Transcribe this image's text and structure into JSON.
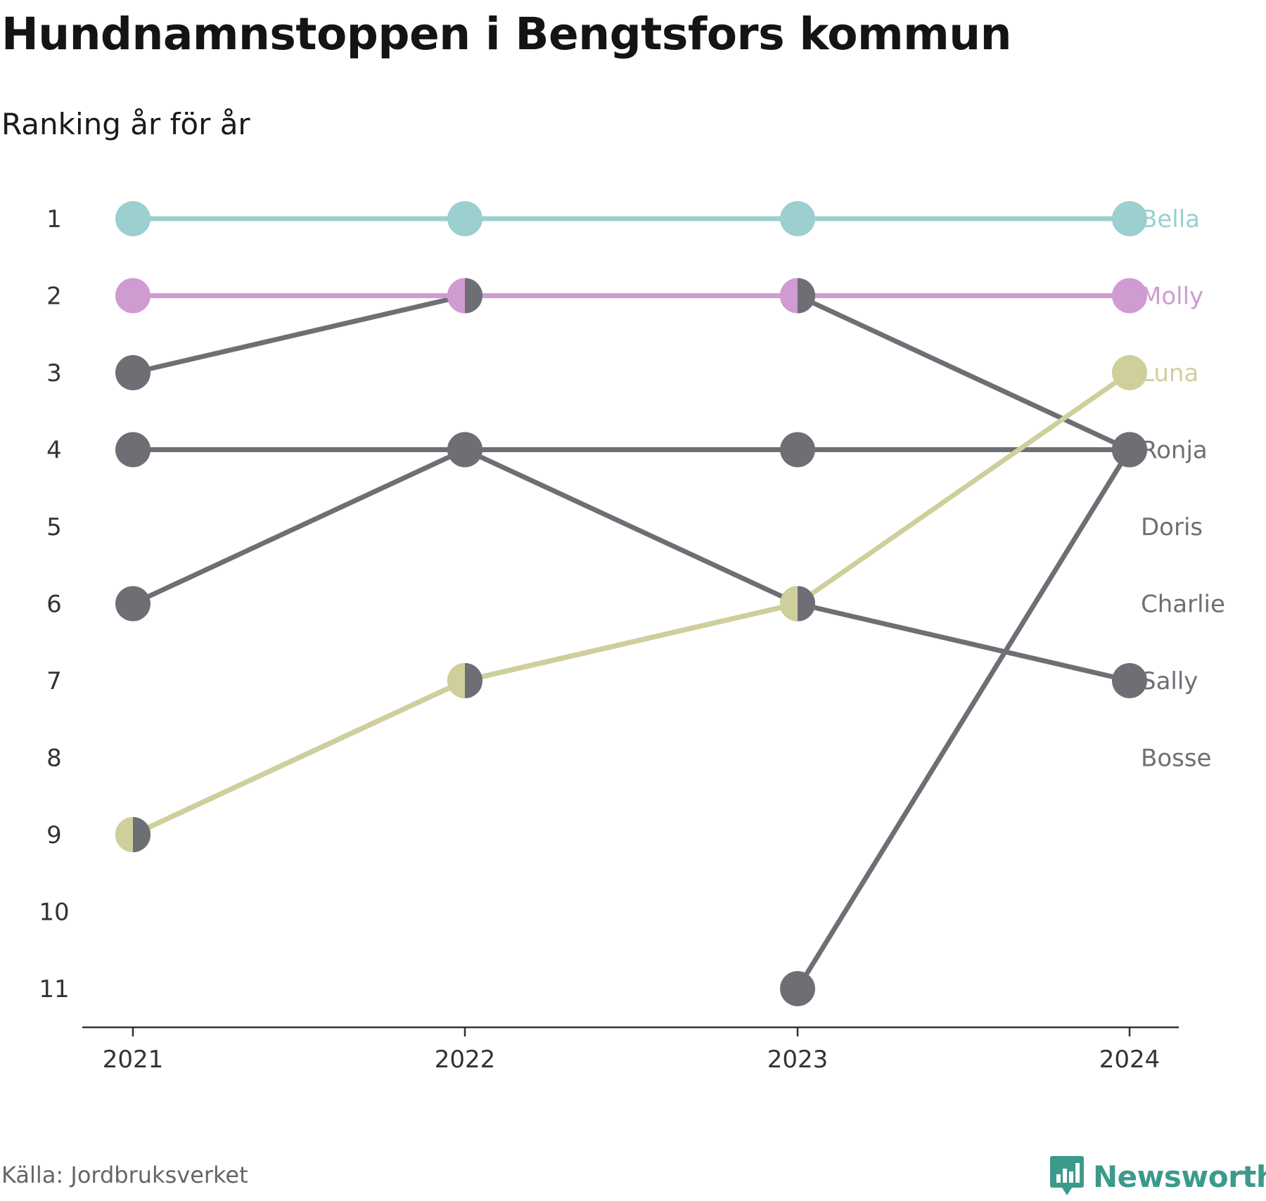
{
  "title": "Hundnamnstoppen i Bengtsfors kommun",
  "subtitle": "Ranking år för år",
  "source": "Källa: Jordbruksverket",
  "brand": {
    "name": "Newsworthy",
    "icon": "bar-chart-speech-bubble-icon",
    "color": "#3c9a8c"
  },
  "chart_data": {
    "type": "line",
    "x": [
      2021,
      2022,
      2023,
      2024
    ],
    "x_tick_labels": [
      "2021",
      "2022",
      "2023",
      "2024"
    ],
    "y_tick_labels": [
      "1",
      "2",
      "3",
      "4",
      "5",
      "6",
      "7",
      "8",
      "9",
      "10",
      "11"
    ],
    "ylim": [
      1,
      11
    ],
    "y_inverted": true,
    "grid": false,
    "legend": "labels at end of lines (right)",
    "series": [
      {
        "name": "Bella",
        "color": "#9ccfcf",
        "values": [
          1,
          1,
          1,
          1
        ]
      },
      {
        "name": "Molly",
        "color": "#cf9bd1",
        "values": [
          2,
          2,
          2,
          2
        ]
      },
      {
        "name": "Luna",
        "color": "#cfcf9c",
        "values": [
          9,
          7,
          6,
          3
        ]
      },
      {
        "name": "Ronja",
        "color": "#6e6e75",
        "values": [
          3,
          2,
          2,
          4
        ]
      },
      {
        "name": "Doris",
        "color": "#6e6e75",
        "values": [
          4,
          4,
          4,
          4
        ]
      },
      {
        "name": "Charlie",
        "color": "#6e6e75",
        "values": [
          null,
          null,
          11,
          4
        ]
      },
      {
        "name": "Sally",
        "color": "#6e6e75",
        "values": [
          6,
          4,
          6,
          7
        ]
      },
      {
        "name": "Bosse",
        "color": "#6e6e75",
        "values": [
          9,
          7,
          6,
          null
        ]
      }
    ]
  }
}
